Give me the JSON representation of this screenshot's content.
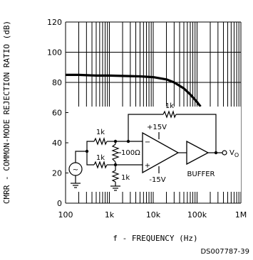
{
  "chart_data": {
    "type": "line",
    "title": "",
    "xlabel": "f - FREQUENCY (Hz)",
    "ylabel": "CMRR - COMMON-MODE REJECTION RATIO (dB)",
    "xscale": "log",
    "xlim": [
      100,
      1000000
    ],
    "ylim": [
      0,
      120
    ],
    "xticks": [
      100,
      1000,
      10000,
      100000,
      1000000
    ],
    "xtick_labels": [
      "100",
      "1k",
      "10k",
      "100k",
      "1M"
    ],
    "yticks": [
      0,
      20,
      40,
      60,
      80,
      100,
      120
    ],
    "ytick_labels": [
      "0",
      "20",
      "40",
      "60",
      "80",
      "100",
      "120"
    ],
    "grid": true,
    "series": [
      {
        "x": [
          100,
          200,
          500,
          1000,
          2000,
          5000,
          10000,
          20000,
          30000,
          50000,
          70000,
          100000,
          120000
        ],
        "y": [
          85,
          85,
          84.5,
          84.5,
          84.3,
          84,
          83.5,
          82,
          80,
          76,
          72,
          67,
          64
        ]
      }
    ],
    "figure_id": "DS007787-39"
  },
  "circuit": {
    "r_input_top": "1k",
    "r_input_bottom": "1k",
    "r_shunt": "1k",
    "r_trim": "100Ω",
    "r_feedback": "1k",
    "supply_pos": "+15V",
    "supply_neg": "-15V",
    "buffer_label": "BUFFER",
    "output_label": "V",
    "output_sub": "O",
    "minus_sign": "−",
    "plus_sign": "+",
    "source_symbol": "~"
  }
}
